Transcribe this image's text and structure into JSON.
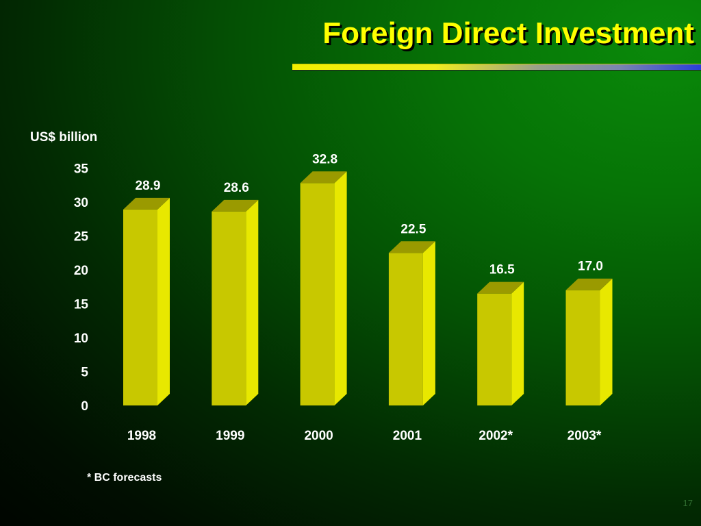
{
  "slide": {
    "title": "Foreign Direct Investment",
    "footnote": "* BC forecasts",
    "page_number": "17"
  },
  "colors": {
    "bar_front": "#c8c800",
    "bar_side": "#e8e800",
    "bar_top": "#9a9a00",
    "title": "#ffff00",
    "label": "#ffffff"
  },
  "chart_data": {
    "type": "bar",
    "title": "Foreign Direct Investment",
    "ylabel": "US$ billion",
    "xlabel": "",
    "categories": [
      "1998",
      "1999",
      "2000",
      "2001",
      "2002*",
      "2003*"
    ],
    "values": [
      28.9,
      28.6,
      32.8,
      22.5,
      16.5,
      17.0
    ],
    "data_labels": [
      "28.9",
      "28.6",
      "32.8",
      "22.5",
      "16.5",
      "17.0"
    ],
    "ylim": [
      0,
      35
    ],
    "yticks": [
      0,
      5,
      10,
      15,
      20,
      25,
      30,
      35
    ],
    "grid": false,
    "style": "3d"
  }
}
